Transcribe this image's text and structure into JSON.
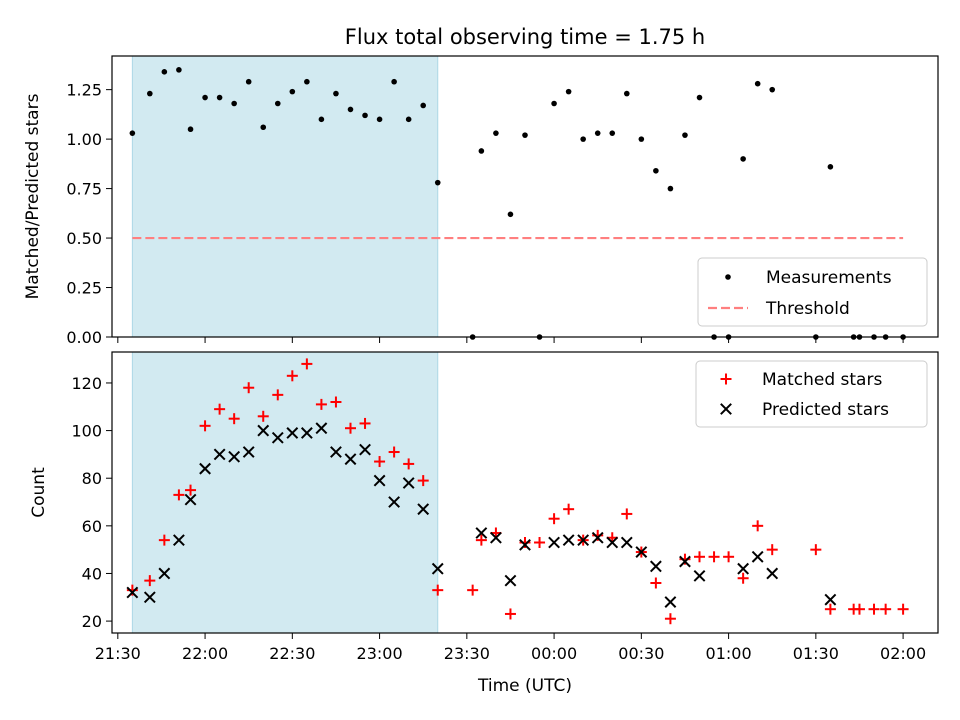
{
  "chart_data": [
    {
      "type": "scatter",
      "title": "Flux total observing time = 1.75 h",
      "ylabel": "Matched/Predicted stars",
      "ylim": [
        0,
        1.42
      ],
      "yticks": [
        "0.00",
        "0.25",
        "0.50",
        "0.75",
        "1.00",
        "1.25"
      ],
      "ytick_values": [
        0,
        0.25,
        0.5,
        0.75,
        1.0,
        1.25
      ],
      "xlim": [
        "21:28",
        "02:12"
      ],
      "highlight_span": [
        "21:35",
        "23:20"
      ],
      "highlight_color": "#add8e6",
      "grid": false,
      "legend": {
        "placement": "lower right"
      },
      "series": [
        {
          "name": "Measurements",
          "marker": "dot",
          "color": "#000000",
          "points": [
            [
              "21:35",
              1.03
            ],
            [
              "21:41",
              1.23
            ],
            [
              "21:46",
              1.34
            ],
            [
              "21:51",
              1.35
            ],
            [
              "21:55",
              1.05
            ],
            [
              "22:00",
              1.21
            ],
            [
              "22:05",
              1.21
            ],
            [
              "22:10",
              1.18
            ],
            [
              "22:15",
              1.29
            ],
            [
              "22:20",
              1.06
            ],
            [
              "22:25",
              1.18
            ],
            [
              "22:30",
              1.24
            ],
            [
              "22:35",
              1.29
            ],
            [
              "22:40",
              1.1
            ],
            [
              "22:45",
              1.23
            ],
            [
              "22:50",
              1.15
            ],
            [
              "22:55",
              1.12
            ],
            [
              "23:00",
              1.1
            ],
            [
              "23:05",
              1.29
            ],
            [
              "23:10",
              1.1
            ],
            [
              "23:15",
              1.17
            ],
            [
              "23:20",
              0.78
            ],
            [
              "23:32",
              0.0
            ],
            [
              "23:35",
              0.94
            ],
            [
              "23:40",
              1.03
            ],
            [
              "23:45",
              0.62
            ],
            [
              "23:50",
              1.02
            ],
            [
              "23:55",
              0.0
            ],
            [
              "00:00",
              1.18
            ],
            [
              "00:05",
              1.24
            ],
            [
              "00:10",
              1.0
            ],
            [
              "00:15",
              1.03
            ],
            [
              "00:20",
              1.03
            ],
            [
              "00:25",
              1.23
            ],
            [
              "00:30",
              1.0
            ],
            [
              "00:35",
              0.84
            ],
            [
              "00:40",
              0.75
            ],
            [
              "00:45",
              1.02
            ],
            [
              "00:50",
              1.21
            ],
            [
              "00:55",
              0.0
            ],
            [
              "01:00",
              0.0
            ],
            [
              "01:05",
              0.9
            ],
            [
              "01:10",
              1.28
            ],
            [
              "01:15",
              1.25
            ],
            [
              "01:30",
              0.0
            ],
            [
              "01:35",
              0.86
            ],
            [
              "01:43",
              0.0
            ],
            [
              "01:45",
              0.0
            ],
            [
              "01:50",
              0.0
            ],
            [
              "01:54",
              0.0
            ],
            [
              "02:00",
              0.0
            ]
          ]
        },
        {
          "name": "Threshold",
          "type": "line",
          "style": "dashed",
          "color": "#ff7f7f",
          "points": [
            [
              "21:35",
              0.5
            ],
            [
              "02:00",
              0.5
            ]
          ]
        }
      ]
    },
    {
      "type": "scatter",
      "xlabel": "Time (UTC)",
      "ylabel": "Count",
      "ylim": [
        15,
        133
      ],
      "yticks": [
        "20",
        "40",
        "60",
        "80",
        "100",
        "120"
      ],
      "ytick_values": [
        20,
        40,
        60,
        80,
        100,
        120
      ],
      "xlim": [
        "21:28",
        "02:12"
      ],
      "xticks": [
        "21:30",
        "22:00",
        "22:30",
        "23:00",
        "23:30",
        "00:00",
        "00:30",
        "01:00",
        "01:30",
        "02:00"
      ],
      "highlight_span": [
        "21:35",
        "23:20"
      ],
      "highlight_color": "#add8e6",
      "grid": false,
      "legend": {
        "placement": "upper right"
      },
      "series": [
        {
          "name": "Matched stars",
          "marker": "plus",
          "color": "#ff0000",
          "points": [
            [
              "21:35",
              33
            ],
            [
              "21:41",
              37
            ],
            [
              "21:46",
              54
            ],
            [
              "21:51",
              73
            ],
            [
              "21:55",
              75
            ],
            [
              "22:00",
              102
            ],
            [
              "22:05",
              109
            ],
            [
              "22:10",
              105
            ],
            [
              "22:15",
              118
            ],
            [
              "22:20",
              106
            ],
            [
              "22:25",
              115
            ],
            [
              "22:30",
              123
            ],
            [
              "22:35",
              128
            ],
            [
              "22:40",
              111
            ],
            [
              "22:45",
              112
            ],
            [
              "22:50",
              101
            ],
            [
              "22:55",
              103
            ],
            [
              "23:00",
              87
            ],
            [
              "23:05",
              91
            ],
            [
              "23:10",
              86
            ],
            [
              "23:15",
              79
            ],
            [
              "23:20",
              33
            ],
            [
              "23:32",
              33
            ],
            [
              "23:35",
              54
            ],
            [
              "23:40",
              57
            ],
            [
              "23:45",
              23
            ],
            [
              "23:50",
              53
            ],
            [
              "23:55",
              53
            ],
            [
              "00:00",
              63
            ],
            [
              "00:05",
              67
            ],
            [
              "00:10",
              54
            ],
            [
              "00:15",
              56
            ],
            [
              "00:20",
              55
            ],
            [
              "00:25",
              65
            ],
            [
              "00:30",
              49
            ],
            [
              "00:35",
              36
            ],
            [
              "00:40",
              21
            ],
            [
              "00:45",
              46
            ],
            [
              "00:50",
              47
            ],
            [
              "00:55",
              47
            ],
            [
              "01:00",
              47
            ],
            [
              "01:05",
              38
            ],
            [
              "01:10",
              60
            ],
            [
              "01:15",
              50
            ],
            [
              "01:30",
              50
            ],
            [
              "01:35",
              25
            ],
            [
              "01:43",
              25
            ],
            [
              "01:45",
              25
            ],
            [
              "01:50",
              25
            ],
            [
              "01:54",
              25
            ],
            [
              "02:00",
              25
            ]
          ]
        },
        {
          "name": "Predicted stars",
          "marker": "x",
          "color": "#000000",
          "points": [
            [
              "21:35",
              32
            ],
            [
              "21:41",
              30
            ],
            [
              "21:46",
              40
            ],
            [
              "21:51",
              54
            ],
            [
              "21:55",
              71
            ],
            [
              "22:00",
              84
            ],
            [
              "22:05",
              90
            ],
            [
              "22:10",
              89
            ],
            [
              "22:15",
              91
            ],
            [
              "22:20",
              100
            ],
            [
              "22:25",
              97
            ],
            [
              "22:30",
              99
            ],
            [
              "22:35",
              99
            ],
            [
              "22:40",
              101
            ],
            [
              "22:45",
              91
            ],
            [
              "22:50",
              88
            ],
            [
              "22:55",
              92
            ],
            [
              "23:00",
              79
            ],
            [
              "23:05",
              70
            ],
            [
              "23:10",
              78
            ],
            [
              "23:15",
              67
            ],
            [
              "23:20",
              42
            ],
            [
              "23:35",
              57
            ],
            [
              "23:40",
              55
            ],
            [
              "23:45",
              37
            ],
            [
              "23:50",
              52
            ],
            [
              "00:00",
              53
            ],
            [
              "00:05",
              54
            ],
            [
              "00:10",
              54
            ],
            [
              "00:15",
              55
            ],
            [
              "00:20",
              53
            ],
            [
              "00:25",
              53
            ],
            [
              "00:30",
              49
            ],
            [
              "00:35",
              43
            ],
            [
              "00:40",
              28
            ],
            [
              "00:45",
              45
            ],
            [
              "00:50",
              39
            ],
            [
              "01:05",
              42
            ],
            [
              "01:10",
              47
            ],
            [
              "01:15",
              40
            ],
            [
              "01:35",
              29
            ]
          ]
        }
      ]
    }
  ]
}
